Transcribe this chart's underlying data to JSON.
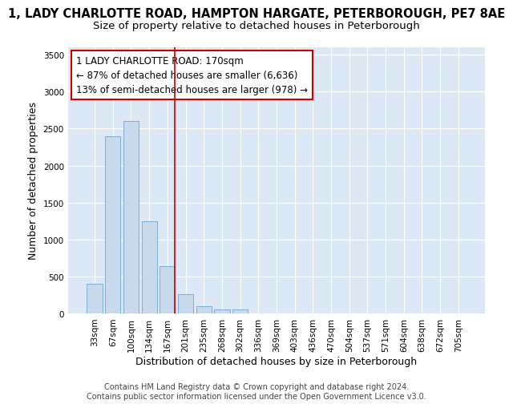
{
  "title_line1": "1, LADY CHARLOTTE ROAD, HAMPTON HARGATE, PETERBOROUGH, PE7 8AE",
  "title_line2": "Size of property relative to detached houses in Peterborough",
  "xlabel": "Distribution of detached houses by size in Peterborough",
  "ylabel": "Number of detached properties",
  "footnote": "Contains HM Land Registry data © Crown copyright and database right 2024.\nContains public sector information licensed under the Open Government Licence v3.0.",
  "categories": [
    "33sqm",
    "67sqm",
    "100sqm",
    "134sqm",
    "167sqm",
    "201sqm",
    "235sqm",
    "268sqm",
    "302sqm",
    "336sqm",
    "369sqm",
    "403sqm",
    "436sqm",
    "470sqm",
    "504sqm",
    "537sqm",
    "571sqm",
    "604sqm",
    "638sqm",
    "672sqm",
    "705sqm"
  ],
  "values": [
    400,
    2400,
    2600,
    1250,
    640,
    255,
    100,
    50,
    50,
    0,
    0,
    0,
    0,
    0,
    0,
    0,
    0,
    0,
    0,
    0,
    0
  ],
  "bar_color": "#c9d9ec",
  "bar_edge_color": "#7bafd4",
  "vline_color": "#cc0000",
  "vline_x_index": 4,
  "annotation_text": "1 LADY CHARLOTTE ROAD: 170sqm\n← 87% of detached houses are smaller (6,636)\n13% of semi-detached houses are larger (978) →",
  "annotation_box_color": "white",
  "annotation_box_edge_color": "#cc0000",
  "ylim": [
    0,
    3600
  ],
  "yticks": [
    0,
    500,
    1000,
    1500,
    2000,
    2500,
    3000,
    3500
  ],
  "plot_background_color": "#dce8f5",
  "title_fontsize": 10.5,
  "subtitle_fontsize": 9.5,
  "tick_fontsize": 7.5,
  "ylabel_fontsize": 9,
  "xlabel_fontsize": 9,
  "annotation_fontsize": 8.5,
  "footnote_fontsize": 7
}
